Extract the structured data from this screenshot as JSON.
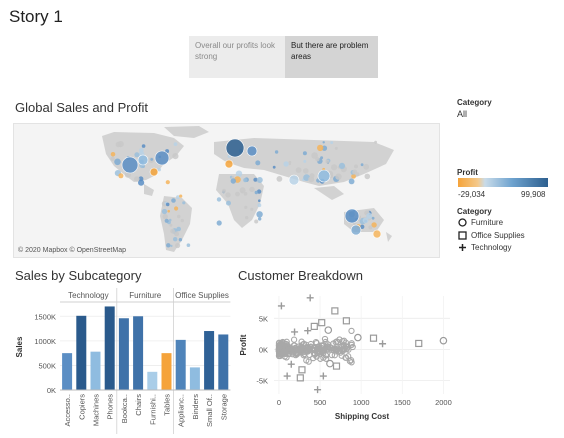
{
  "story": {
    "title": "Story 1",
    "points": [
      {
        "label": "Overall our profits look strong"
      },
      {
        "label": "But there are problem areas"
      }
    ]
  },
  "map_section": {
    "title": "Global Sales and Profit",
    "credit": "© 2020 Mapbox © OpenStreetMap"
  },
  "legend": {
    "category_filter_label": "Category",
    "category_filter_value": "All",
    "profit_label": "Profit",
    "profit_min": "-29,034",
    "profit_max": "99,908",
    "shape_label": "Category",
    "shapes": [
      {
        "icon": "circle-icon",
        "label": "Furniture"
      },
      {
        "icon": "square-icon",
        "label": "Office Supplies"
      },
      {
        "icon": "plus-icon",
        "label": "Technology"
      }
    ],
    "colors": {
      "negative": "#f5a33a",
      "positive": "#2d5f8f"
    }
  },
  "bar_section": {
    "title": "Sales by Subcategory"
  },
  "scatter_section": {
    "title": "Customer Breakdown"
  },
  "chart_data": [
    {
      "type": "bar",
      "title": "Sales by Subcategory",
      "ylabel": "Sales",
      "ylim": [
        0,
        1750000
      ],
      "yticks": [
        "0K",
        "500K",
        "1000K",
        "1500K"
      ],
      "ytick_values": [
        0,
        500000,
        1000000,
        1500000
      ],
      "groups": [
        {
          "name": "Technology",
          "categories": [
            "Accesso..",
            "Copiers",
            "Machines",
            "Phones"
          ],
          "values": [
            750000,
            1510000,
            780000,
            1700000
          ],
          "colors": [
            "#5b8ec4",
            "#2a5a8c",
            "#8fbce0",
            "#2a5a8c"
          ]
        },
        {
          "name": "Furniture",
          "categories": [
            "Bookca..",
            "Chairs",
            "Furnishi..",
            "Tables"
          ],
          "values": [
            1460000,
            1500000,
            370000,
            750000
          ],
          "colors": [
            "#3f72a9",
            "#3f72a9",
            "#a9cde8",
            "#f5a33a"
          ]
        },
        {
          "name": "Office Supplies",
          "categories": [
            "Applianc..",
            "Binders",
            "Small Of..",
            "Storage"
          ],
          "values": [
            1020000,
            460000,
            1200000,
            1130000
          ],
          "colors": [
            "#4f84ba",
            "#8fbce0",
            "#2f6196",
            "#3f72a9"
          ]
        }
      ]
    },
    {
      "type": "scatter",
      "title": "Customer Breakdown",
      "xlabel": "Shipping Cost",
      "ylabel": "Profit",
      "xlim": [
        -60,
        2080
      ],
      "ylim": [
        -7200,
        8600
      ],
      "xticks": [
        0,
        500,
        1000,
        1500,
        2000
      ],
      "yticks": [
        -5000,
        0,
        5000
      ],
      "ytick_labels": [
        "-5K",
        "0K",
        "5K"
      ],
      "points": [
        {
          "x": 30,
          "y": 7000,
          "shape": "plus"
        },
        {
          "x": 380,
          "y": 8300,
          "shape": "plus"
        },
        {
          "x": 680,
          "y": 6200,
          "shape": "square"
        },
        {
          "x": 820,
          "y": 4600,
          "shape": "square"
        },
        {
          "x": 520,
          "y": 4300,
          "shape": "square"
        },
        {
          "x": 430,
          "y": 3700,
          "shape": "square"
        },
        {
          "x": 600,
          "y": 3100,
          "shape": "circle"
        },
        {
          "x": 350,
          "y": 3000,
          "shape": "plus"
        },
        {
          "x": 190,
          "y": 2800,
          "shape": "plus"
        },
        {
          "x": 1150,
          "y": 1800,
          "shape": "square"
        },
        {
          "x": 960,
          "y": 1900,
          "shape": "circle"
        },
        {
          "x": 1700,
          "y": 950,
          "shape": "square"
        },
        {
          "x": 2000,
          "y": 1400,
          "shape": "circle"
        },
        {
          "x": 1260,
          "y": 900,
          "shape": "plus"
        },
        {
          "x": 150,
          "y": -2400,
          "shape": "plus"
        },
        {
          "x": 280,
          "y": -3300,
          "shape": "square"
        },
        {
          "x": 260,
          "y": -4600,
          "shape": "square"
        },
        {
          "x": 100,
          "y": -4300,
          "shape": "plus"
        },
        {
          "x": 540,
          "y": -4300,
          "shape": "plus"
        },
        {
          "x": 470,
          "y": -6500,
          "shape": "plus"
        },
        {
          "x": 700,
          "y": -2700,
          "shape": "square"
        },
        {
          "x": 620,
          "y": -2300,
          "shape": "circle"
        }
      ]
    }
  ]
}
